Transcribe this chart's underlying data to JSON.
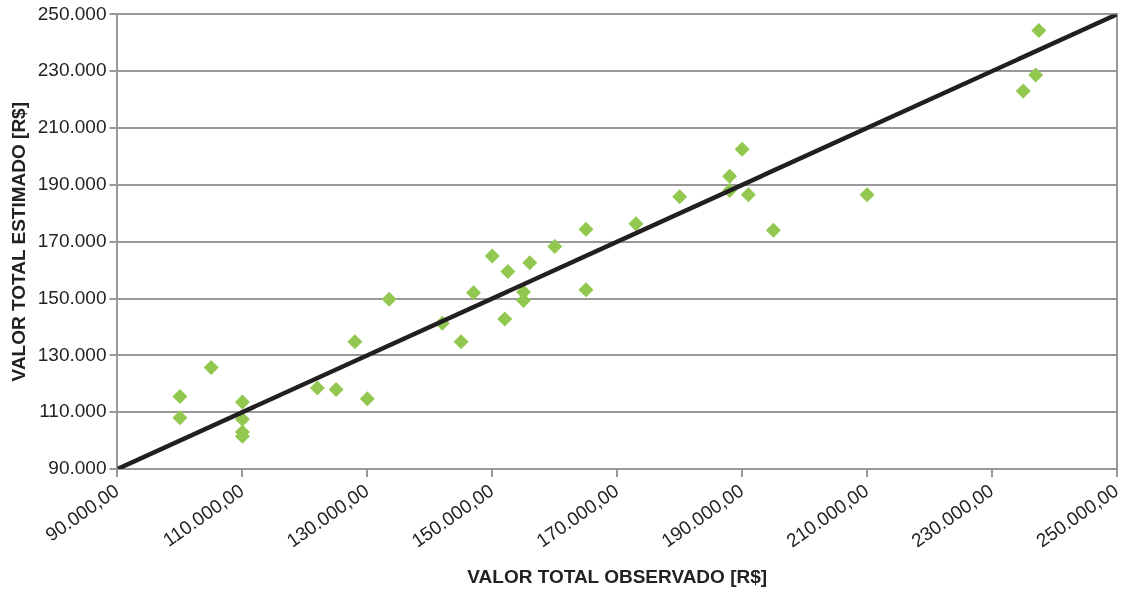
{
  "chart_data": {
    "type": "scatter",
    "xlabel": "VALOR TOTAL OBSERVADO [R$]",
    "ylabel": "VALOR TOTAL ESTIMADO [R$]",
    "xlim": [
      90000,
      250000
    ],
    "ylim": [
      90000,
      250000
    ],
    "xticks": [
      {
        "value": 90000,
        "label": "90.000,00"
      },
      {
        "value": 110000,
        "label": "110.000,00"
      },
      {
        "value": 130000,
        "label": "130.000,00"
      },
      {
        "value": 150000,
        "label": "150.000,00"
      },
      {
        "value": 170000,
        "label": "170.000,00"
      },
      {
        "value": 190000,
        "label": "190.000,00"
      },
      {
        "value": 210000,
        "label": "210.000,00"
      },
      {
        "value": 230000,
        "label": "230.000,00"
      },
      {
        "value": 250000,
        "label": "250.000,00"
      }
    ],
    "yticks": [
      {
        "value": 90000,
        "label": "90.000"
      },
      {
        "value": 110000,
        "label": "110.000"
      },
      {
        "value": 130000,
        "label": "130.000"
      },
      {
        "value": 150000,
        "label": "150.000"
      },
      {
        "value": 170000,
        "label": "170.000"
      },
      {
        "value": 190000,
        "label": "190.000"
      },
      {
        "value": 210000,
        "label": "210.000"
      },
      {
        "value": 230000,
        "label": "230.000"
      },
      {
        "value": 250000,
        "label": "250.000"
      }
    ],
    "grid": "y",
    "legend": false,
    "marker": "diamond",
    "series": [
      {
        "color": "#92c84f",
        "x": [
          100000,
          100000,
          105000,
          110000,
          110000,
          110000,
          110000,
          122000,
          125000,
          130000,
          128000,
          133500,
          142000,
          145000,
          147000,
          150000,
          152500,
          152000,
          155000,
          155000,
          156000,
          160000,
          165000,
          165000,
          173000,
          180000,
          188000,
          188000,
          190000,
          191000,
          195000,
          210000,
          235000,
          237000,
          237500
        ],
        "values": [
          115500,
          108000,
          125700,
          113600,
          107500,
          103000,
          101500,
          118500,
          118000,
          114700,
          134800,
          149700,
          141300,
          134800,
          152000,
          165000,
          159500,
          142800,
          152300,
          149300,
          162600,
          168300,
          174400,
          153100,
          176300,
          185800,
          193000,
          188000,
          202500,
          186500,
          174000,
          186500,
          223000,
          228700,
          244300
        ]
      },
      {
        "type": "line",
        "color": "#231f20",
        "x": [
          90000,
          250000
        ],
        "values": [
          90000,
          250000
        ],
        "marker": "none"
      }
    ]
  }
}
